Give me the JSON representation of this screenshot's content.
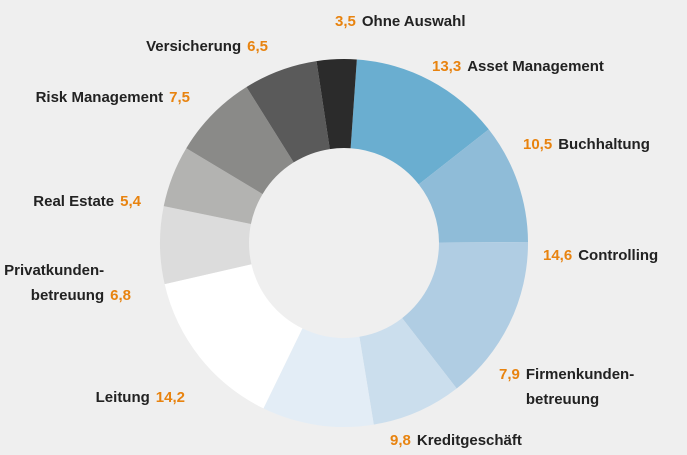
{
  "chart_data": {
    "type": "donut",
    "categories": [
      "Asset Management",
      "Buchhaltung",
      "Controlling",
      "Firmenkunden-\nbetreuung",
      "Kreditgeschäft",
      "Leitung",
      "Privatkunden-\nbetreuung",
      "Real Estate",
      "Risk Management",
      "Versicherung",
      "Ohne Auswahl"
    ],
    "values": [
      13.3,
      10.5,
      14.6,
      7.9,
      9.8,
      14.2,
      6.8,
      5.4,
      7.5,
      6.5,
      3.5
    ],
    "value_labels": [
      "13,3",
      "10,5",
      "14,6",
      "7,9",
      "9,8",
      "14,2",
      "6,8",
      "5,4",
      "7,5",
      "6,5",
      "3,5"
    ],
    "colors": [
      "#6aaed0",
      "#8fbcd8",
      "#b0cde3",
      "#cbdeed",
      "#e3edf6",
      "#ffffff",
      "#dcdcdc",
      "#b3b3b1",
      "#8a8a88",
      "#5a5a5a",
      "#2b2b2b"
    ],
    "value_label_color": "#e8830f"
  }
}
